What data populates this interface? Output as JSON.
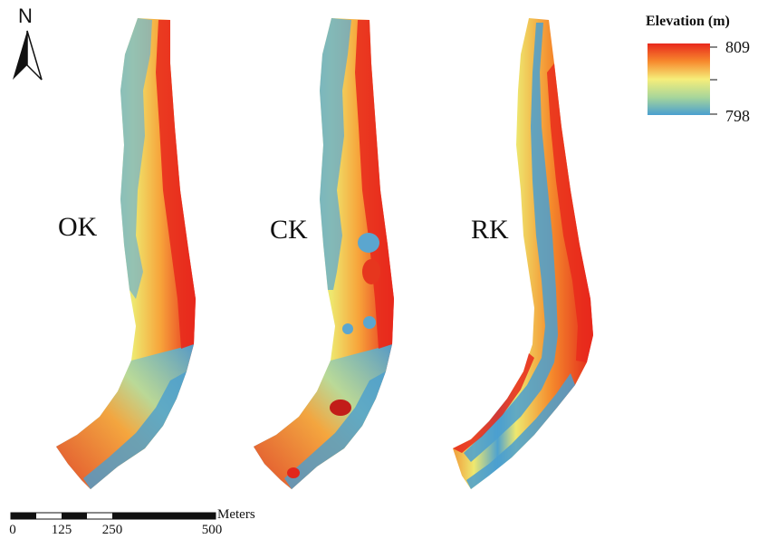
{
  "panels": [
    {
      "label": "OK"
    },
    {
      "label": "CK"
    },
    {
      "label": "RK"
    }
  ],
  "north_arrow": {
    "letter": "N",
    "icon": "north-arrow-icon"
  },
  "legend": {
    "title": "Elevation (m)",
    "max": "809",
    "min": "798",
    "colors": [
      "#d7191c",
      "#fdae61",
      "#ffffbf",
      "#abd9e9",
      "#2c7bb6"
    ]
  },
  "scale_bar": {
    "units": "Meters",
    "ticks": [
      "0",
      "125",
      "250",
      "500"
    ]
  },
  "colors": {
    "high": "#e8281c",
    "mid_high": "#f7892d",
    "mid": "#f3e866",
    "mid_low": "#b5d98c",
    "low": "#4fa3cf"
  }
}
